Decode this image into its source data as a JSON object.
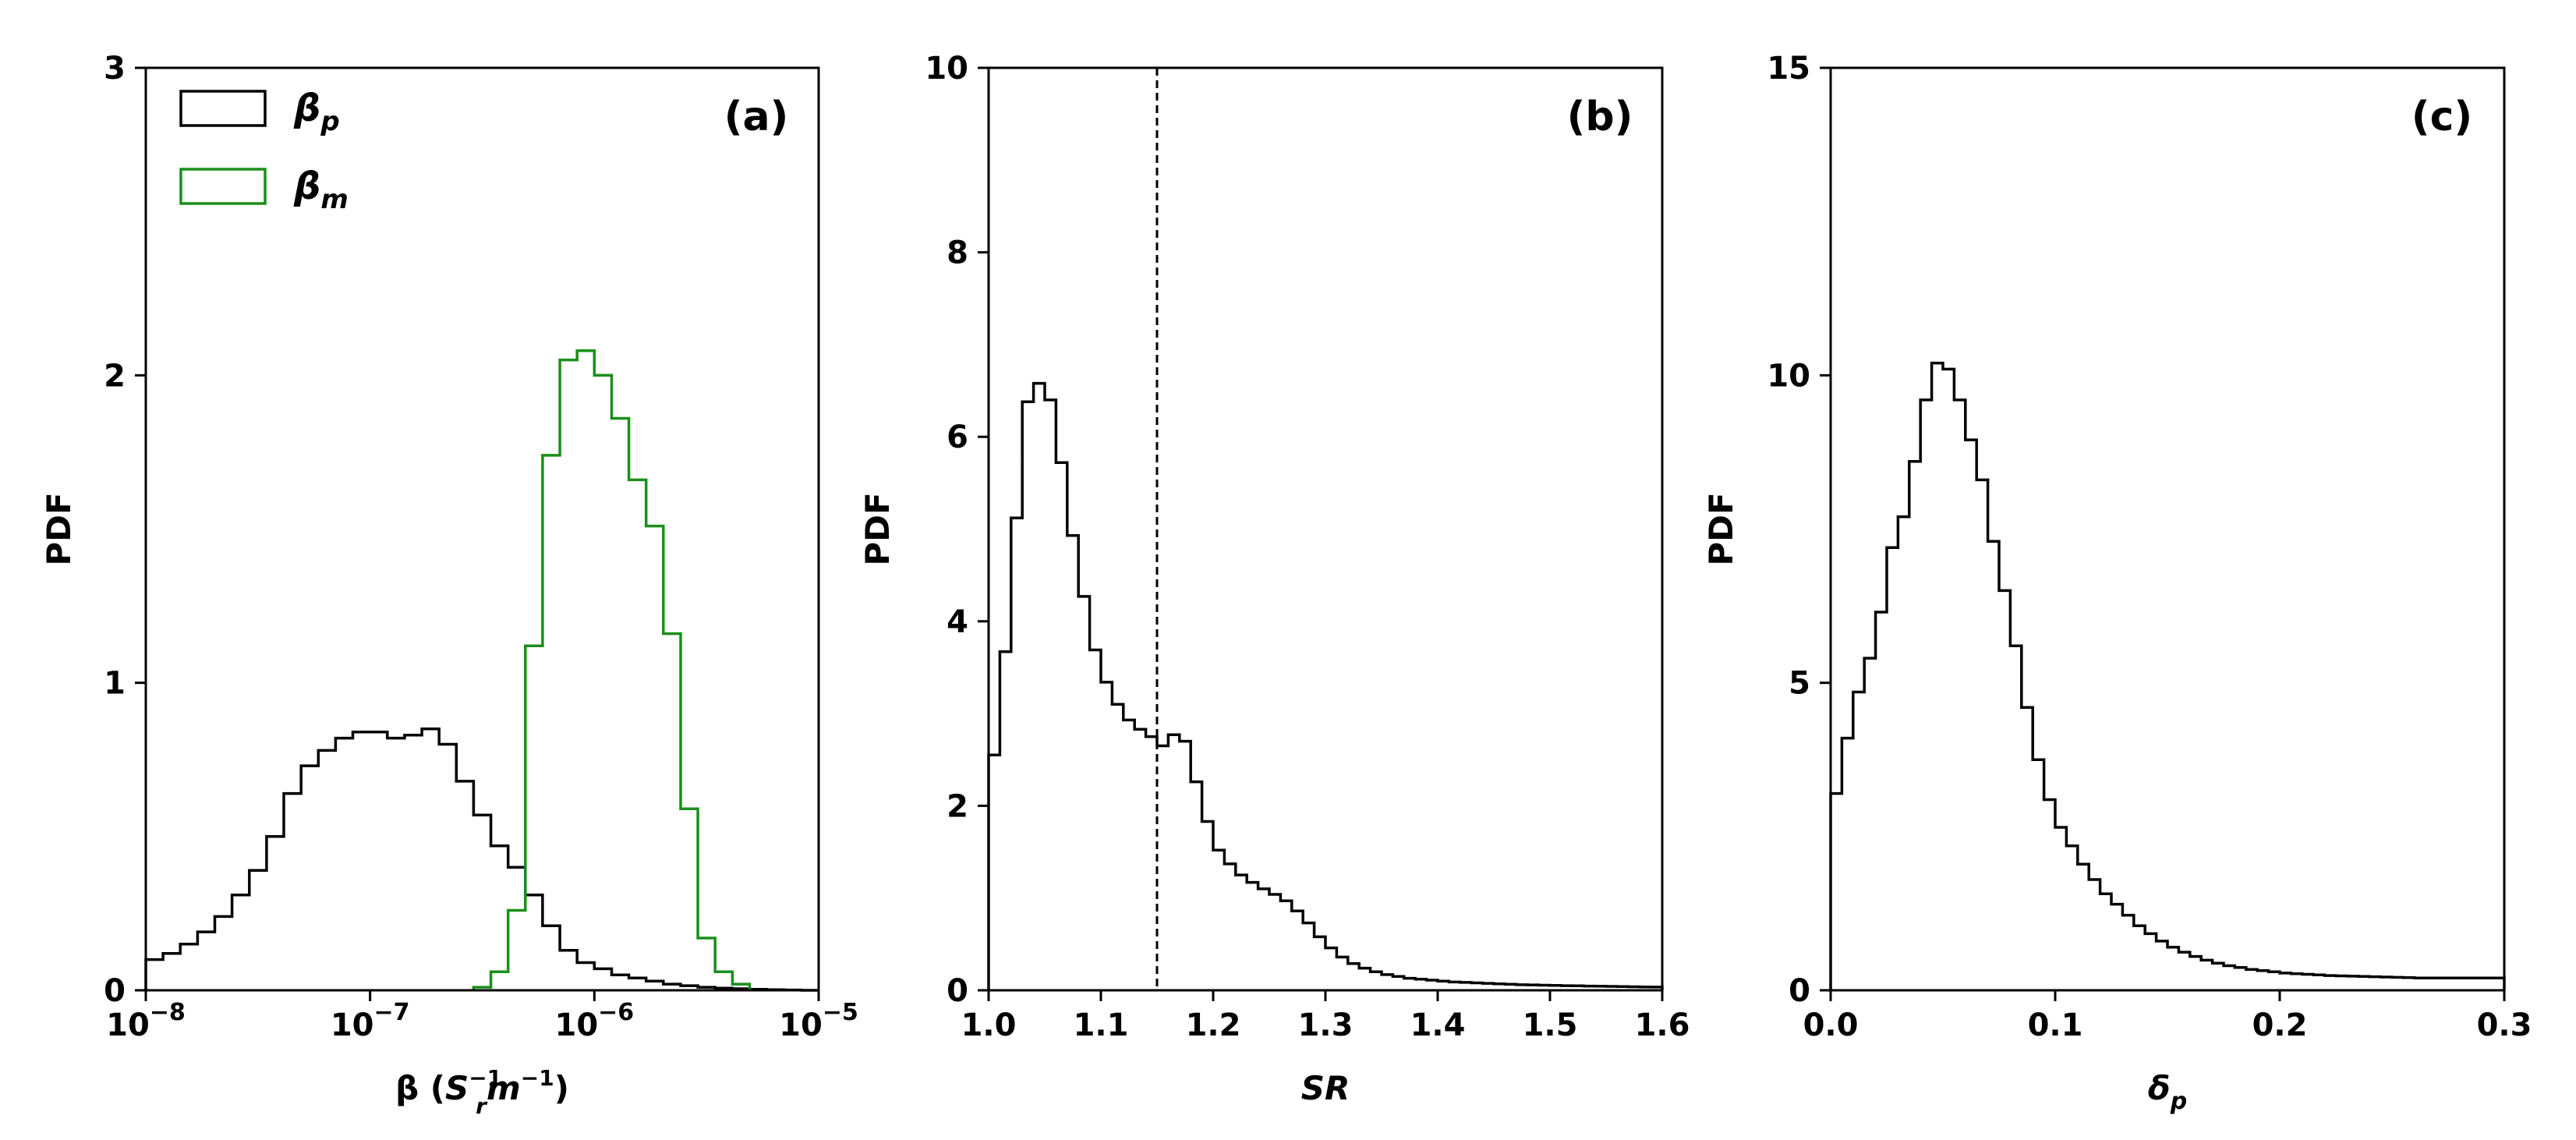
{
  "chart_data": [
    {
      "type": "histogram",
      "panel_label": "(a)",
      "xlabel": "β (S_r^-1 m^-1)",
      "xlabel_parts": {
        "base": "β (",
        "s": "S",
        "s_sub": "r",
        "s_sup": "−1",
        "m": "m",
        "m_sup": "−1",
        "close": ")"
      },
      "ylabel": "PDF",
      "xscale": "log",
      "xlim": [
        1e-08,
        1e-05
      ],
      "ylim": [
        0,
        3
      ],
      "xticks": [
        1e-08,
        1e-07,
        1e-06,
        1e-05
      ],
      "xtick_labels": [
        "10−8",
        "10−7",
        "10−6",
        "10−5"
      ],
      "xtick_exps": [
        "−8",
        "−7",
        "−6",
        "−5"
      ],
      "yticks": [
        0,
        1,
        2,
        3
      ],
      "ytick_labels": [
        "0",
        "1",
        "2",
        "3"
      ],
      "legend": {
        "placement": "top-left"
      },
      "series": [
        {
          "name": "βp",
          "legend_base": "β",
          "legend_sub": "p",
          "color": "#000000",
          "bin_edges_log10": [
            -8.0,
            -7.9231,
            -7.8462,
            -7.7692,
            -7.6923,
            -7.6154,
            -7.5385,
            -7.4615,
            -7.3846,
            -7.3077,
            -7.2308,
            -7.1538,
            -7.0769,
            -7.0,
            -6.9231,
            -6.8462,
            -6.7692,
            -6.6923,
            -6.6154,
            -6.5385,
            -6.4615,
            -6.3846,
            -6.3077,
            -6.2308,
            -6.1538,
            -6.0769,
            -6.0,
            -5.9231,
            -5.8462,
            -5.7692,
            -5.6923,
            -5.6154,
            -5.5385,
            -5.4615,
            -5.3846,
            -5.3077,
            -5.2308,
            -5.1538,
            -5.0769,
            -5.0
          ],
          "values": [
            0.1,
            0.12,
            0.15,
            0.19,
            0.24,
            0.31,
            0.39,
            0.5,
            0.64,
            0.73,
            0.78,
            0.82,
            0.84,
            0.84,
            0.82,
            0.83,
            0.85,
            0.8,
            0.68,
            0.57,
            0.47,
            0.4,
            0.31,
            0.21,
            0.13,
            0.09,
            0.07,
            0.05,
            0.04,
            0.03,
            0.02,
            0.015,
            0.01,
            0.007,
            0.005,
            0.003,
            0.002,
            0.001,
            0.0
          ]
        },
        {
          "name": "βm",
          "legend_base": "β",
          "legend_sub": "m",
          "color": "#1a8f1a",
          "bin_edges_log10": [
            -6.5385,
            -6.4615,
            -6.3846,
            -6.3077,
            -6.2308,
            -6.1538,
            -6.0769,
            -6.0,
            -5.9231,
            -5.8462,
            -5.7692,
            -5.6923,
            -5.6154,
            -5.5385,
            -5.4615,
            -5.3846,
            -5.3077
          ],
          "values": [
            0.01,
            0.06,
            0.26,
            1.12,
            1.74,
            2.05,
            2.08,
            2.0,
            1.86,
            1.66,
            1.51,
            1.16,
            0.59,
            0.17,
            0.06,
            0.02
          ]
        }
      ]
    },
    {
      "type": "histogram",
      "panel_label": "(b)",
      "xlabel": "SR",
      "ylabel": "PDF",
      "xlim": [
        1.0,
        1.6
      ],
      "ylim": [
        0,
        10
      ],
      "xticks": [
        1.0,
        1.1,
        1.2,
        1.3,
        1.4,
        1.5,
        1.6
      ],
      "xtick_labels": [
        "1.0",
        "1.1",
        "1.2",
        "1.3",
        "1.4",
        "1.5",
        "1.6"
      ],
      "yticks": [
        0,
        2,
        4,
        6,
        8,
        10
      ],
      "ytick_labels": [
        "0",
        "2",
        "4",
        "6",
        "8",
        "10"
      ],
      "vline": {
        "x": 1.15,
        "style": "dashed"
      },
      "series": [
        {
          "color": "#000000",
          "bin_edges": [
            1.0,
            1.01,
            1.02,
            1.03,
            1.04,
            1.05,
            1.06,
            1.07,
            1.08,
            1.09,
            1.1,
            1.11,
            1.12,
            1.13,
            1.14,
            1.15,
            1.16,
            1.17,
            1.18,
            1.19,
            1.2,
            1.21,
            1.22,
            1.23,
            1.24,
            1.25,
            1.26,
            1.27,
            1.28,
            1.29,
            1.3,
            1.31,
            1.32,
            1.33,
            1.34,
            1.35,
            1.36,
            1.37,
            1.38,
            1.39,
            1.4,
            1.41,
            1.42,
            1.43,
            1.44,
            1.45,
            1.46,
            1.47,
            1.48,
            1.49,
            1.5,
            1.51,
            1.52,
            1.53,
            1.54,
            1.55,
            1.56,
            1.57,
            1.58,
            1.59,
            1.6
          ],
          "values": [
            2.55,
            3.67,
            5.12,
            6.38,
            6.58,
            6.4,
            5.72,
            4.93,
            4.27,
            3.69,
            3.34,
            3.1,
            2.93,
            2.83,
            2.75,
            2.65,
            2.77,
            2.7,
            2.26,
            1.83,
            1.52,
            1.37,
            1.25,
            1.17,
            1.1,
            1.04,
            0.97,
            0.86,
            0.73,
            0.58,
            0.46,
            0.36,
            0.29,
            0.24,
            0.2,
            0.17,
            0.15,
            0.13,
            0.12,
            0.11,
            0.1,
            0.09,
            0.085,
            0.08,
            0.075,
            0.07,
            0.065,
            0.06,
            0.058,
            0.055,
            0.052,
            0.05,
            0.048,
            0.046,
            0.044,
            0.042,
            0.04,
            0.038,
            0.036,
            0.035
          ]
        }
      ]
    },
    {
      "type": "histogram",
      "panel_label": "(c)",
      "xlabel": "δp",
      "xlabel_parts": {
        "base": "δ",
        "sub": "p"
      },
      "ylabel": "PDF",
      "xlim": [
        0.0,
        0.3
      ],
      "ylim": [
        0,
        15
      ],
      "xticks": [
        0.0,
        0.1,
        0.2,
        0.3
      ],
      "xtick_labels": [
        "0.0",
        "0.1",
        "0.2",
        "0.3"
      ],
      "yticks": [
        0,
        5,
        10,
        15
      ],
      "ytick_labels": [
        "0",
        "5",
        "10",
        "15"
      ],
      "series": [
        {
          "color": "#000000",
          "bin_edges": [
            0.0,
            0.005,
            0.01,
            0.015,
            0.02,
            0.025,
            0.03,
            0.035,
            0.04,
            0.045,
            0.05,
            0.055,
            0.06,
            0.065,
            0.07,
            0.075,
            0.08,
            0.085,
            0.09,
            0.095,
            0.1,
            0.105,
            0.11,
            0.115,
            0.12,
            0.125,
            0.13,
            0.135,
            0.14,
            0.145,
            0.15,
            0.155,
            0.16,
            0.165,
            0.17,
            0.175,
            0.18,
            0.185,
            0.19,
            0.195,
            0.2,
            0.205,
            0.21,
            0.215,
            0.22,
            0.225,
            0.23,
            0.235,
            0.24,
            0.245,
            0.25,
            0.255,
            0.26,
            0.265,
            0.27,
            0.275,
            0.28,
            0.285,
            0.29,
            0.295,
            0.3
          ],
          "values": [
            3.2,
            4.1,
            4.85,
            5.4,
            6.15,
            7.2,
            7.7,
            8.6,
            9.6,
            10.2,
            10.1,
            9.6,
            8.95,
            8.3,
            7.3,
            6.5,
            5.6,
            4.6,
            3.75,
            3.1,
            2.65,
            2.35,
            2.05,
            1.8,
            1.57,
            1.4,
            1.22,
            1.05,
            0.92,
            0.8,
            0.7,
            0.62,
            0.55,
            0.49,
            0.44,
            0.4,
            0.37,
            0.34,
            0.32,
            0.3,
            0.28,
            0.27,
            0.26,
            0.25,
            0.24,
            0.235,
            0.23,
            0.225,
            0.22,
            0.215,
            0.21,
            0.205,
            0.2,
            0.2,
            0.2,
            0.2,
            0.2,
            0.2,
            0.2,
            0.2
          ]
        }
      ]
    }
  ]
}
